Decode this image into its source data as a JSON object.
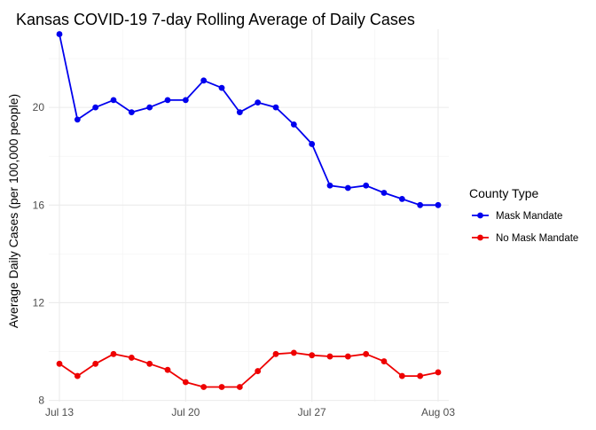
{
  "chart_data": {
    "type": "line",
    "title": "Kansas COVID-19 7-day Rolling Average of Daily Cases",
    "xlabel": "",
    "ylabel": "Average Daily Cases (per 100,000 people)",
    "x": [
      "2020-07-13",
      "2020-07-14",
      "2020-07-15",
      "2020-07-16",
      "2020-07-17",
      "2020-07-18",
      "2020-07-19",
      "2020-07-20",
      "2020-07-21",
      "2020-07-22",
      "2020-07-23",
      "2020-07-24",
      "2020-07-25",
      "2020-07-26",
      "2020-07-27",
      "2020-07-28",
      "2020-07-29",
      "2020-07-30",
      "2020-07-31",
      "2020-08-01",
      "2020-08-02",
      "2020-08-03"
    ],
    "x_ticks": [
      {
        "date": "2020-07-13",
        "label": "Jul 13"
      },
      {
        "date": "2020-07-20",
        "label": "Jul 20"
      },
      {
        "date": "2020-07-27",
        "label": "Jul 27"
      },
      {
        "date": "2020-08-03",
        "label": "Aug 03"
      }
    ],
    "y_ticks": [
      8,
      12,
      16,
      20
    ],
    "ylim": [
      7.95,
      23.2
    ],
    "grid": true,
    "legend": {
      "title": "County Type",
      "position": "right"
    },
    "series": [
      {
        "name": "Mask Mandate",
        "color": "#0000ee",
        "values": [
          23.0,
          19.5,
          20.0,
          20.3,
          19.8,
          20.0,
          20.3,
          20.3,
          21.1,
          20.8,
          19.8,
          20.2,
          20.0,
          19.3,
          18.5,
          16.8,
          16.7,
          16.8,
          16.5,
          16.25,
          16.0,
          16.0
        ]
      },
      {
        "name": "No Mask Mandate",
        "color": "#ee0000",
        "values": [
          9.5,
          9.0,
          9.5,
          9.9,
          9.75,
          9.5,
          9.25,
          8.75,
          8.55,
          8.55,
          8.55,
          9.2,
          9.9,
          9.95,
          9.85,
          9.8,
          9.8,
          9.9,
          9.6,
          9.0,
          9.0,
          9.15
        ]
      }
    ]
  }
}
